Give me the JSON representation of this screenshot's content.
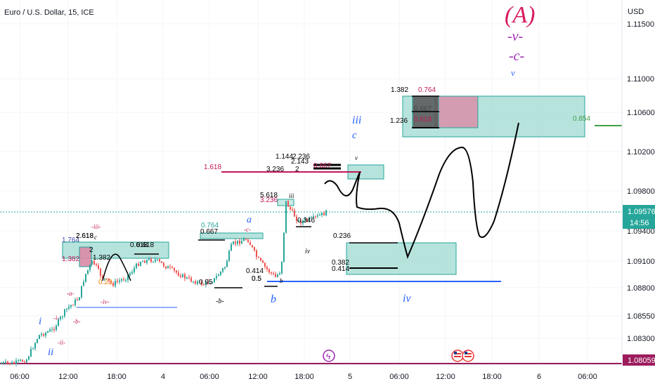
{
  "chart_data": {
    "type": "candlestick",
    "title": "Euro / U.S. Dollar, 15, ICE",
    "currency": "USD",
    "y_ticks": [
      "1.11500",
      "1.11000",
      "1.10600",
      "1.10200",
      "1.09800",
      "1.09400",
      "1.09100",
      "1.08800",
      "1.08550",
      "1.08300",
      "1.08059"
    ],
    "x_ticks": [
      "06:00",
      "12:00",
      "18:00",
      "4",
      "06:00",
      "12:00",
      "18:00",
      "5",
      "06:00",
      "12:00",
      "18:00",
      "6",
      "06:00"
    ],
    "ylim": [
      1.0795,
      1.1165
    ],
    "last_price": "1.09576",
    "countdown": "14:56",
    "low_marker": "1.08059",
    "colors": {
      "up": "#26a69a",
      "down": "#ef5350",
      "wave_blue": "#2962ff",
      "wave_pink": "#d81b60",
      "wave_purple": "#9c27b0",
      "zone_fill": "#a5dcd4",
      "magenta_line": "#9c1c5c"
    },
    "fib_labels": [
      "1.382",
      "0.764",
      "0.667",
      "0.618",
      "1.236",
      "0.854",
      "1.618",
      "1.144",
      "2.236",
      "3.236",
      "2.618",
      "0.764",
      "0.667",
      "0.618",
      "0.5",
      "0.95",
      "0.414",
      "0.5",
      "0.346",
      "0.236",
      "0.382",
      "0.414",
      "1.764",
      "1.382",
      "2.618",
      "0.618",
      "1.382",
      "0.23",
      "2",
      "2.143",
      "2",
      "5.618",
      "3.236",
      "0.667"
    ],
    "wave_labels": [
      "(A)",
      "-v-",
      "-c-",
      "v",
      "iii",
      "c",
      "v",
      "a",
      "-c-",
      "b",
      "iv",
      "iv",
      "-b-",
      "i",
      "ii",
      "-i-",
      "-ii-",
      "-iii-",
      "-iv-",
      "-a-",
      "-b-",
      "c",
      "b",
      "iii"
    ]
  },
  "badges": {
    "flash": "ϟ"
  }
}
